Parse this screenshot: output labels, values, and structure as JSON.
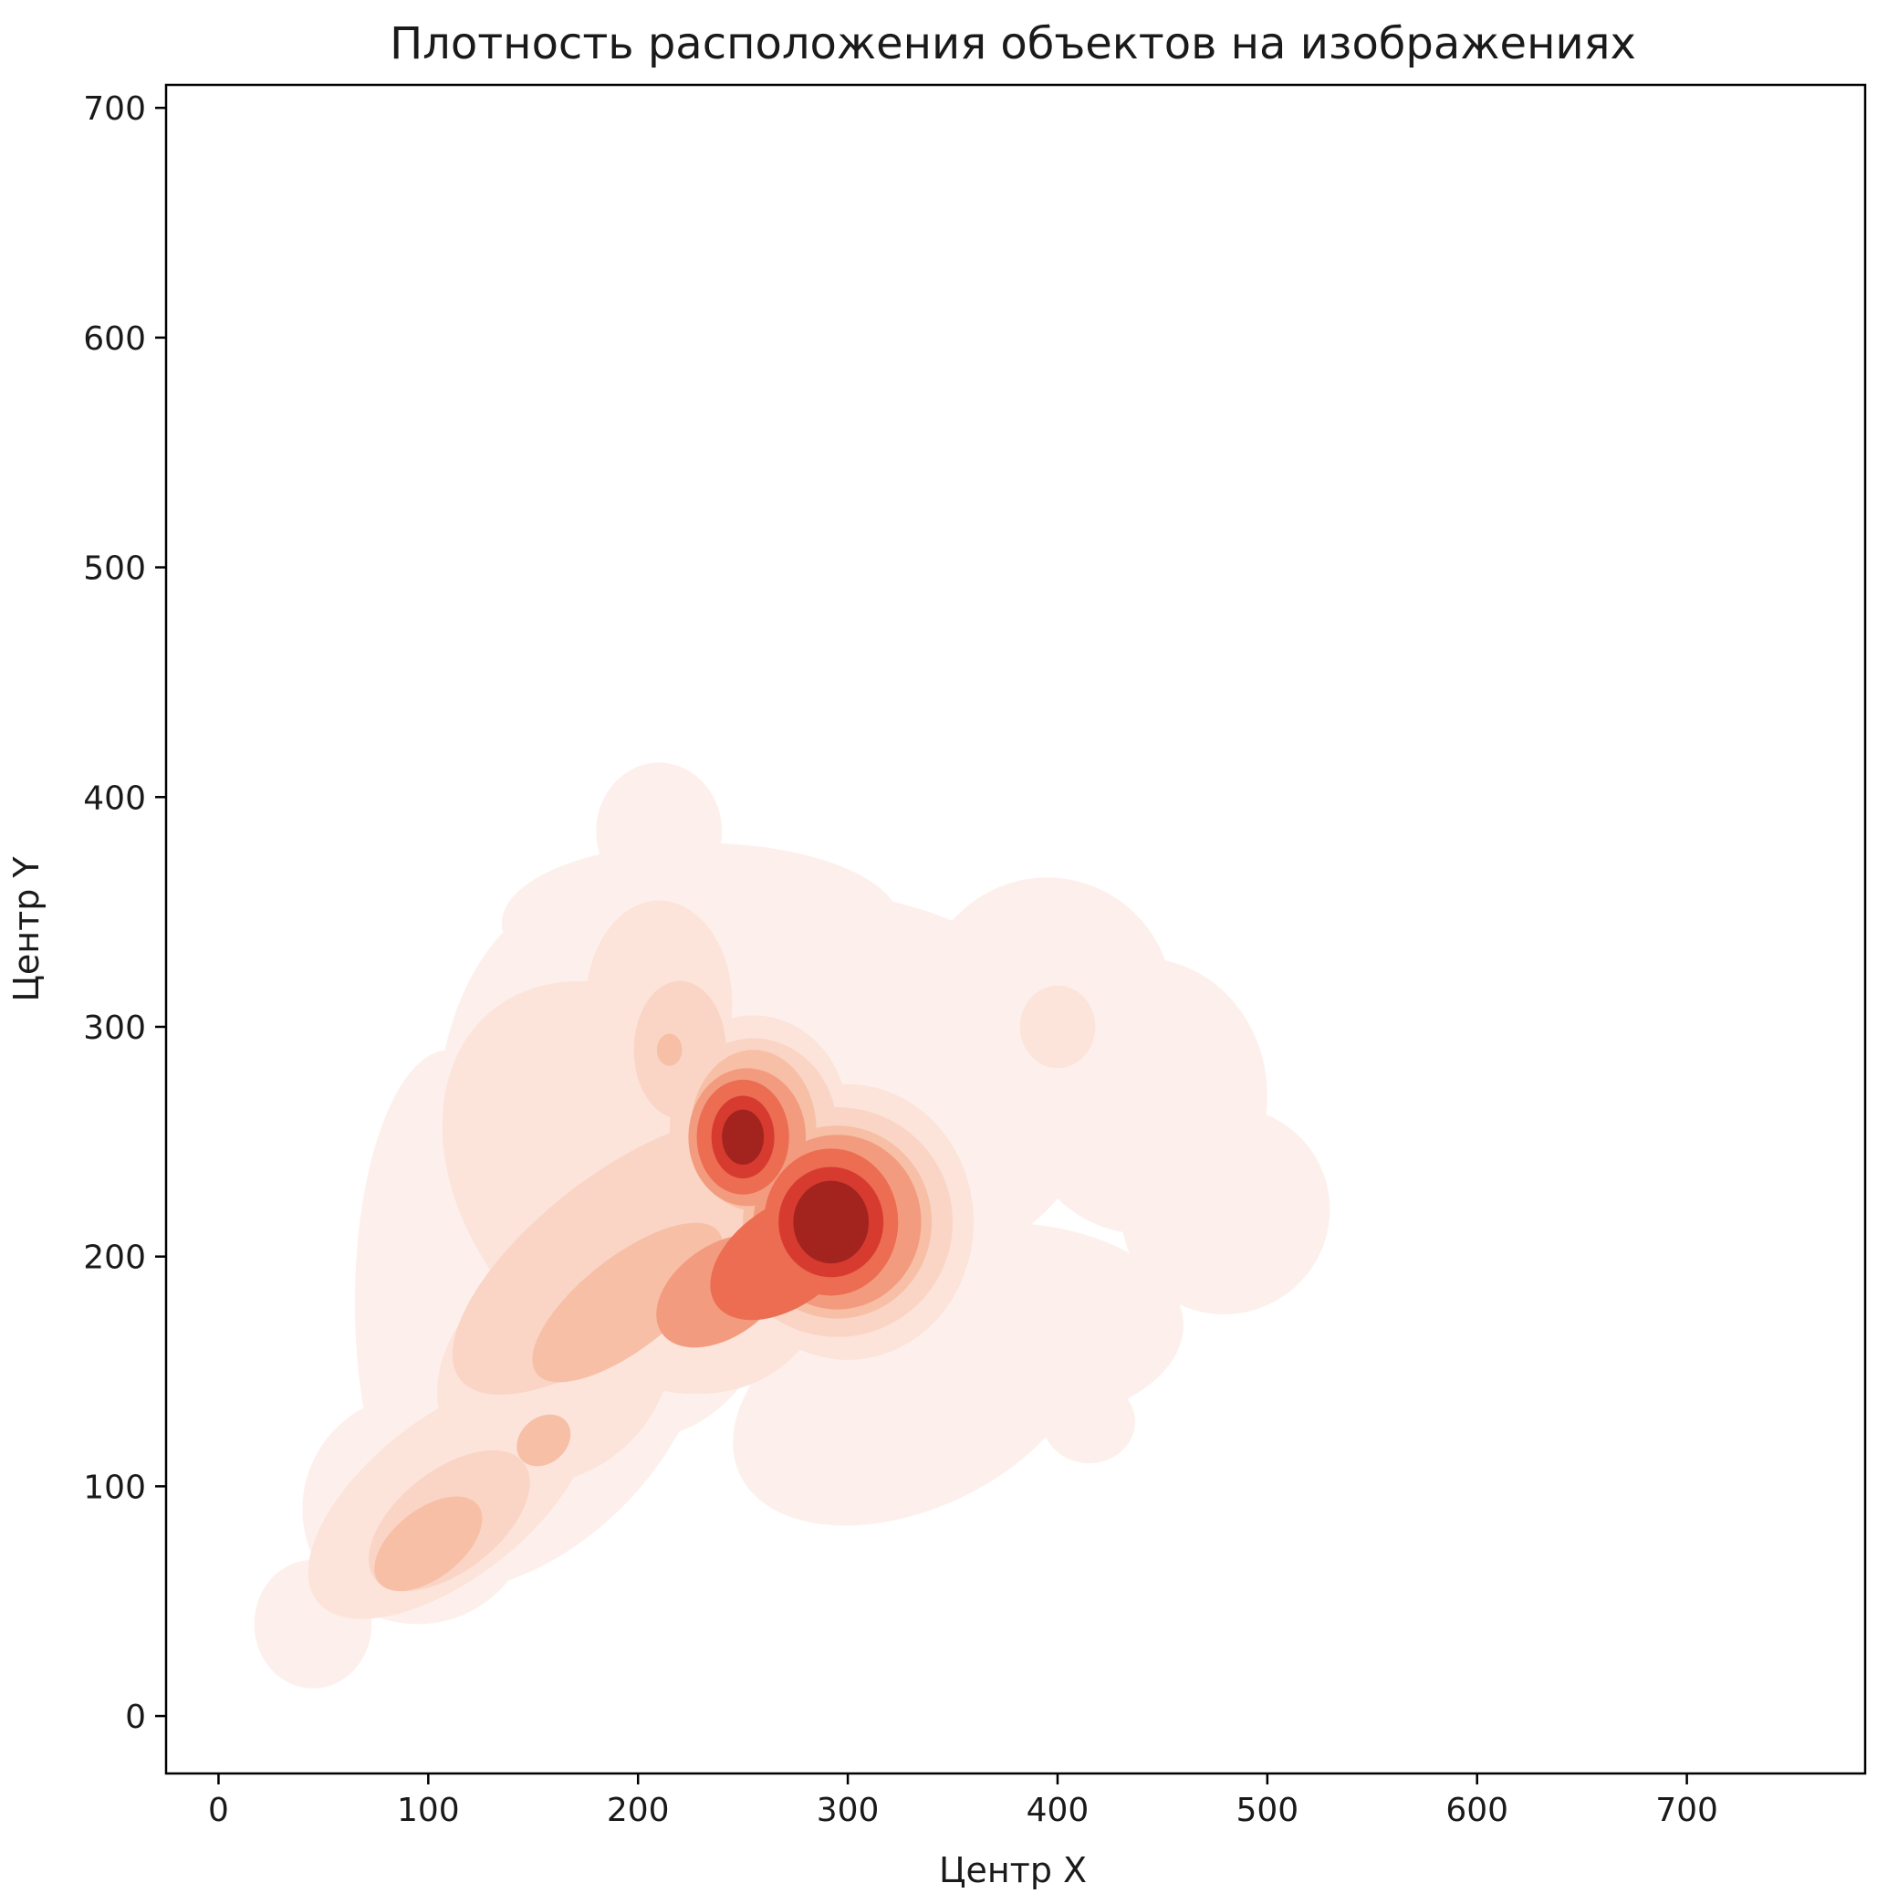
{
  "chart_data": {
    "type": "heatmap",
    "title": "Плотность расположения объектов на изображениях",
    "xlabel": "Центр X",
    "ylabel": "Центр Y",
    "xlim": [
      -25,
      785
    ],
    "ylim": [
      -25,
      710
    ],
    "xticks": [
      0,
      100,
      200,
      300,
      400,
      500,
      600,
      700
    ],
    "yticks": [
      0,
      100,
      200,
      300,
      400,
      500,
      600,
      700
    ],
    "grid": false,
    "colormap": "Reds",
    "palette": [
      "#fdf0ec",
      "#fce4db",
      "#fad5c6",
      "#f7bfa6",
      "#f39b7e",
      "#ec6d52",
      "#d73b2f",
      "#a3241f"
    ],
    "density_peaks": [
      {
        "x": 292,
        "y": 215,
        "level": "highest"
      },
      {
        "x": 250,
        "y": 250,
        "level": "highest"
      },
      {
        "x": 155,
        "y": 120,
        "level": "medium"
      },
      {
        "x": 215,
        "y": 290,
        "level": "low"
      },
      {
        "x": 400,
        "y": 300,
        "level": "low"
      }
    ]
  }
}
